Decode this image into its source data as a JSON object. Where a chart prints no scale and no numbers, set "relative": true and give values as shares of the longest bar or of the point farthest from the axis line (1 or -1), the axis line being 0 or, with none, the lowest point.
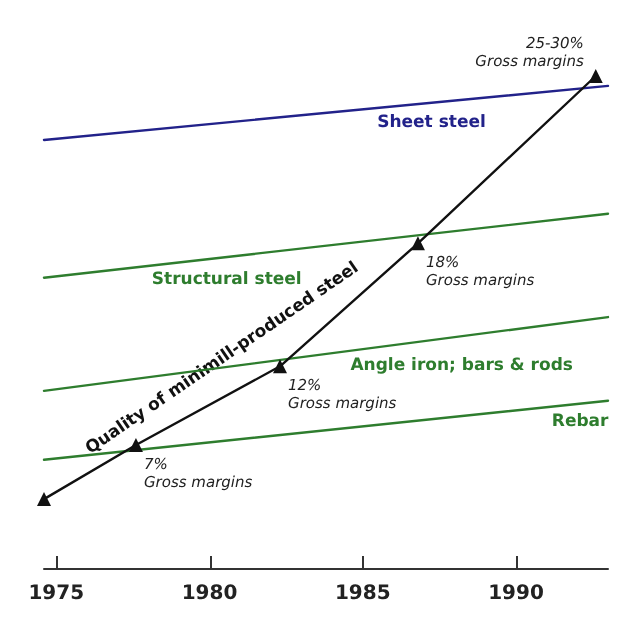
{
  "chart_data": {
    "type": "line",
    "relative": true,
    "xlim": [
      1974.6,
      1993
    ],
    "xticks": [
      1975,
      1980,
      1985,
      1990
    ],
    "grid": false,
    "series": [
      {
        "name": "Sheet steel",
        "color": "#22228a",
        "x": [
          1974.6,
          1993
        ],
        "values": [
          0.87,
          0.98
        ]
      },
      {
        "name": "Structural steel",
        "color": "#2e7d2e",
        "x": [
          1974.6,
          1993
        ],
        "values": [
          0.59,
          0.72
        ]
      },
      {
        "name": "Angle iron; bars & rods",
        "color": "#2e7d2e",
        "x": [
          1974.6,
          1993
        ],
        "values": [
          0.36,
          0.51
        ]
      },
      {
        "name": "Rebar",
        "color": "#2e7d2e",
        "x": [
          1974.6,
          1993
        ],
        "values": [
          0.22,
          0.34
        ]
      },
      {
        "name": "Quality of minimill-produced steel",
        "color": "#111111",
        "marker": "triangle",
        "x": [
          1974.6,
          1977.6,
          1982.3,
          1986.8,
          1992.6
        ],
        "values": [
          0.14,
          0.25,
          0.41,
          0.66,
          1
        ]
      }
    ],
    "annotations": [
      {
        "text": "7%\nGross margins",
        "x": 1977.6,
        "y": 0.25
      },
      {
        "text": "12%\nGross margins",
        "x": 1982.3,
        "y": 0.41
      },
      {
        "text": "18%\nGross margins",
        "x": 1986.8,
        "y": 0.66
      },
      {
        "text": "25-30%\nGross margins",
        "x": 1992.6,
        "y": 1
      }
    ]
  }
}
